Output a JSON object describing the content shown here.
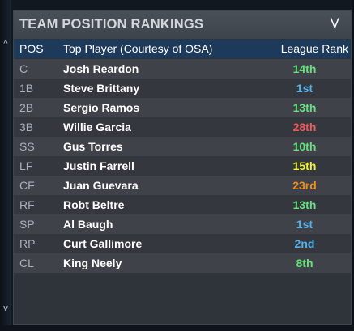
{
  "panel": {
    "title": "TEAM POSITION RANKINGS",
    "collapse_icon": "chevron-down-icon",
    "collapse_glyph": "V"
  },
  "nav": {
    "up_arrow": "^",
    "down_arrow": "v"
  },
  "table": {
    "headers": {
      "pos": "POS",
      "player": "Top Player (Courtesy of OSA)",
      "rank": "League Rank"
    },
    "rows": [
      {
        "pos": "C",
        "player": "Josh Reardon",
        "rank": "14th",
        "rank_color": "#66e07a"
      },
      {
        "pos": "1B",
        "player": "Steve Brittany",
        "rank": "1st",
        "rank_color": "#4fb3ee"
      },
      {
        "pos": "2B",
        "player": "Sergio Ramos",
        "rank": "13th",
        "rank_color": "#66e07a"
      },
      {
        "pos": "3B",
        "player": "Willie Garcia",
        "rank": "28th",
        "rank_color": "#ef5a5a"
      },
      {
        "pos": "SS",
        "player": "Gus Torres",
        "rank": "10th",
        "rank_color": "#66e07a"
      },
      {
        "pos": "LF",
        "player": "Justin Farrell",
        "rank": "15th",
        "rank_color": "#f2f230"
      },
      {
        "pos": "CF",
        "player": "Juan Guevara",
        "rank": "23rd",
        "rank_color": "#f08c1e"
      },
      {
        "pos": "RF",
        "player": "Robt Beltre",
        "rank": "13th",
        "rank_color": "#66e07a"
      },
      {
        "pos": "SP",
        "player": "Al Baugh",
        "rank": "1st",
        "rank_color": "#4fb3ee"
      },
      {
        "pos": "RP",
        "player": "Curt Gallimore",
        "rank": "2nd",
        "rank_color": "#4fb3ee"
      },
      {
        "pos": "CL",
        "player": "King Neely",
        "rank": "8th",
        "rank_color": "#66e07a"
      }
    ]
  }
}
